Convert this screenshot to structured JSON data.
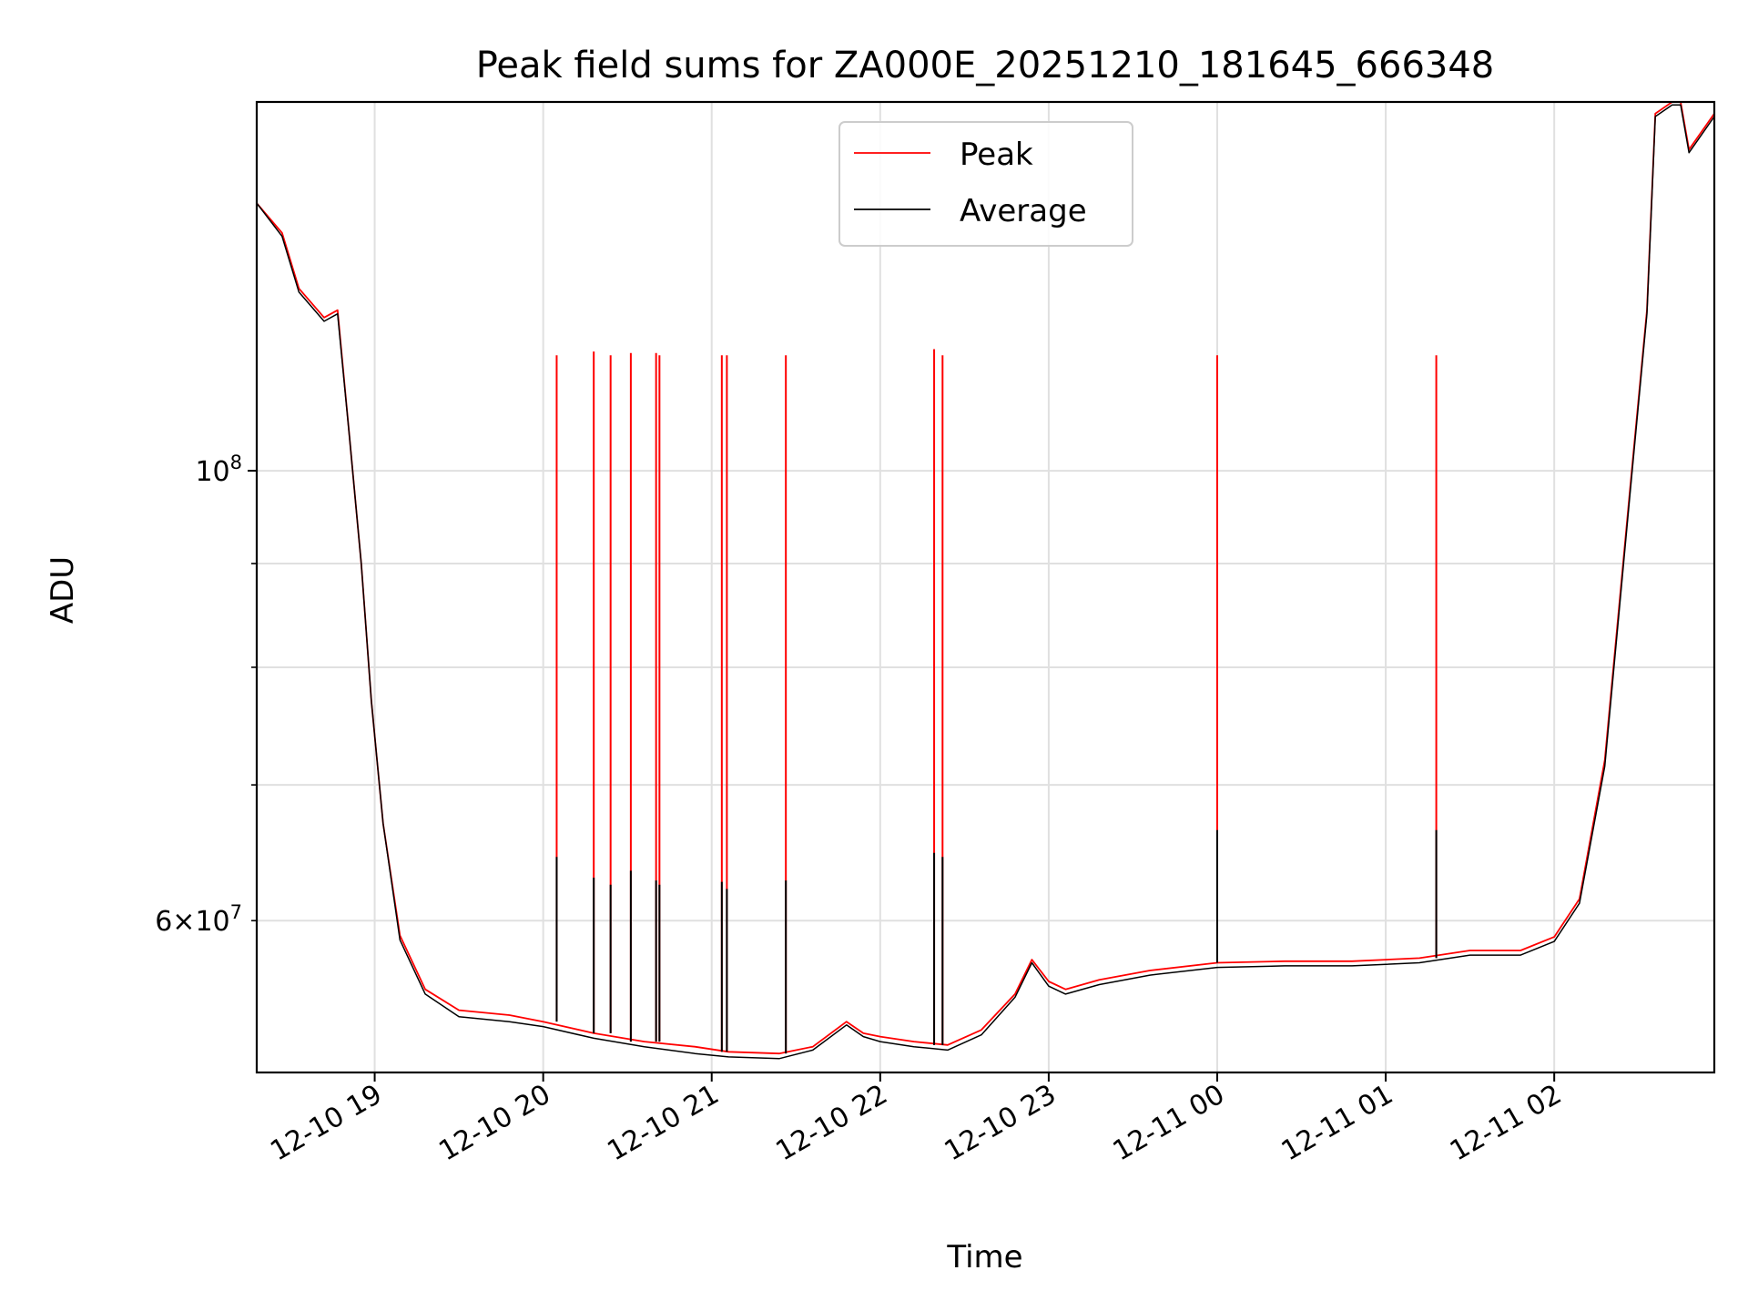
{
  "chart_data": {
    "type": "line",
    "title": "Peak field sums for ZA000E_20251210_181645_666348",
    "xlabel": "Time",
    "ylabel": "ADU",
    "yscale": "log",
    "grid": true,
    "legend_position": "top-center",
    "xlim_hours": [
      -0.7,
      7.95
    ],
    "ylim": [
      50500000,
      152000000
    ],
    "x_ticks": [
      {
        "h": 0,
        "label": "12-10 19"
      },
      {
        "h": 1,
        "label": "12-10 20"
      },
      {
        "h": 2,
        "label": "12-10 21"
      },
      {
        "h": 3,
        "label": "12-10 22"
      },
      {
        "h": 4,
        "label": "12-10 23"
      },
      {
        "h": 5,
        "label": "12-11 00"
      },
      {
        "h": 6,
        "label": "12-11 01"
      },
      {
        "h": 7,
        "label": "12-11 02"
      }
    ],
    "y_ticks_major": [
      {
        "value": 100000000,
        "base": "10",
        "exp": "8"
      }
    ],
    "y_ticks_minor": [
      {
        "value": 60000000,
        "coef": "6",
        "base": "10",
        "exp": "7"
      },
      {
        "value": 70000000
      },
      {
        "value": 80000000
      },
      {
        "value": 90000000
      }
    ],
    "x_unit_note": "hours relative to 2025-12-10 19:00",
    "series": [
      {
        "name": "Peak",
        "color": "#ff0000",
        "x": [
          -0.7,
          -0.55,
          -0.45,
          -0.3,
          -0.22,
          -0.15,
          -0.08,
          -0.02,
          0.05,
          0.15,
          0.3,
          0.5,
          0.8,
          1.0,
          1.3,
          1.6,
          1.9,
          2.1,
          2.4,
          2.6,
          2.8,
          2.9,
          3.0,
          3.2,
          3.4,
          3.6,
          3.8,
          3.9,
          4.0,
          4.1,
          4.3,
          4.6,
          5.0,
          5.4,
          5.8,
          6.2,
          6.5,
          6.8,
          7.0,
          7.15,
          7.3,
          7.45,
          7.55,
          7.6,
          7.7,
          7.75,
          7.8,
          7.95
        ],
        "y": [
          135500000,
          131000000,
          123000000,
          119000000,
          120000000,
          104000000,
          90000000,
          77000000,
          67000000,
          59000000,
          55500000,
          54200000,
          53900000,
          53500000,
          52800000,
          52300000,
          52000000,
          51700000,
          51600000,
          52000000,
          53500000,
          52800000,
          52600000,
          52300000,
          52100000,
          53000000,
          55200000,
          57400000,
          56000000,
          55500000,
          56100000,
          56700000,
          57200000,
          57300000,
          57300000,
          57500000,
          58000000,
          58000000,
          58900000,
          61500000,
          72000000,
          98000000,
          120000000,
          150000000,
          152000000,
          152000000,
          144000000,
          150000000
        ]
      },
      {
        "name": "Average",
        "color": "#000000",
        "x": [
          -0.7,
          -0.55,
          -0.45,
          -0.3,
          -0.22,
          -0.15,
          -0.08,
          -0.02,
          0.05,
          0.15,
          0.3,
          0.5,
          0.8,
          1.0,
          1.3,
          1.6,
          1.9,
          2.1,
          2.4,
          2.6,
          2.8,
          2.9,
          3.0,
          3.2,
          3.4,
          3.6,
          3.8,
          3.9,
          4.0,
          4.1,
          4.3,
          4.6,
          5.0,
          5.4,
          5.8,
          6.2,
          6.5,
          6.8,
          7.0,
          7.15,
          7.3,
          7.45,
          7.55,
          7.6,
          7.7,
          7.75,
          7.8,
          7.95
        ],
        "y": [
          135500000,
          130500000,
          122500000,
          118500000,
          119500000,
          104000000,
          90000000,
          77000000,
          67000000,
          58700000,
          55200000,
          53800000,
          53500000,
          53200000,
          52500000,
          52000000,
          51600000,
          51400000,
          51300000,
          51800000,
          53300000,
          52600000,
          52300000,
          52000000,
          51800000,
          52700000,
          55000000,
          57200000,
          55700000,
          55200000,
          55800000,
          56400000,
          56900000,
          57000000,
          57000000,
          57200000,
          57700000,
          57700000,
          58600000,
          61200000,
          71500000,
          97500000,
          119500000,
          149500000,
          151500000,
          151500000,
          143500000,
          149500000
        ]
      }
    ],
    "spikes": [
      {
        "h": 1.08,
        "peak": 114000000,
        "average": 64500000
      },
      {
        "h": 1.3,
        "peak": 114500000,
        "average": 63000000
      },
      {
        "h": 1.4,
        "peak": 114000000,
        "average": 62500000
      },
      {
        "h": 1.52,
        "peak": 114300000,
        "average": 63500000
      },
      {
        "h": 1.67,
        "peak": 114300000,
        "average": 62800000
      },
      {
        "h": 1.69,
        "peak": 114000000,
        "average": 62500000
      },
      {
        "h": 2.06,
        "peak": 114000000,
        "average": 62700000
      },
      {
        "h": 2.09,
        "peak": 114000000,
        "average": 62200000
      },
      {
        "h": 2.44,
        "peak": 114000000,
        "average": 62800000
      },
      {
        "h": 3.32,
        "peak": 114800000,
        "average": 64800000
      },
      {
        "h": 3.37,
        "peak": 114000000,
        "average": 64500000
      },
      {
        "h": 5.0,
        "peak": 114000000,
        "average": 66500000
      },
      {
        "h": 6.3,
        "peak": 114000000,
        "average": 66500000
      }
    ]
  }
}
